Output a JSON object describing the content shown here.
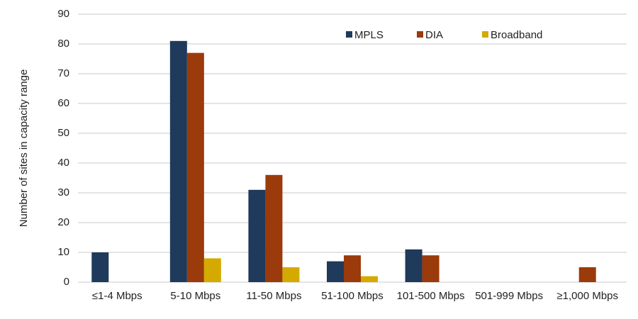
{
  "chart_data": {
    "type": "bar",
    "y_label": "Number of sites in capacity range",
    "categories": [
      "≤1-4 Mbps",
      "5-10 Mbps",
      "11-50 Mbps",
      "51-100 Mbps",
      "101-500 Mbps",
      "501-999 Mbps",
      "≥1,000 Mbps"
    ],
    "series": [
      {
        "name": "MPLS",
        "color": "#1f3a5a",
        "values": [
          10,
          81,
          31,
          7,
          11,
          0,
          0
        ]
      },
      {
        "name": "DIA",
        "color": "#9b3a0a",
        "values": [
          0,
          77,
          36,
          9,
          9,
          0,
          5
        ]
      },
      {
        "name": "Broadband",
        "color": "#d4aa00",
        "values": [
          0,
          8,
          5,
          2,
          0,
          0,
          0
        ]
      }
    ],
    "ylim": [
      0,
      90
    ],
    "yticks": [
      0,
      10,
      20,
      30,
      40,
      50,
      60,
      70,
      80,
      90
    ],
    "grid": true,
    "legend": "top"
  }
}
